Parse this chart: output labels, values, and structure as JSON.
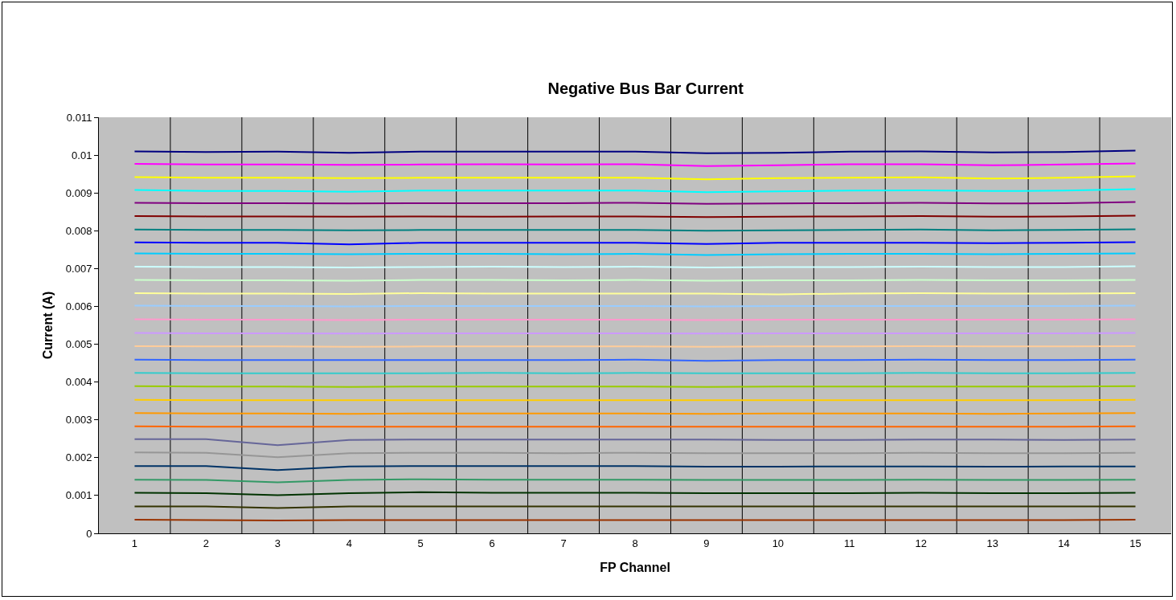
{
  "chart_data": {
    "type": "line",
    "title": "Negative Bus Bar Current",
    "xlabel": "FP Channel",
    "ylabel": "Current (A)",
    "categories": [
      "1",
      "2",
      "3",
      "4",
      "5",
      "6",
      "7",
      "8",
      "9",
      "10",
      "11",
      "12",
      "13",
      "14",
      "15"
    ],
    "ylim": [
      0,
      0.011
    ],
    "yticks": [
      0,
      0.001,
      0.002,
      0.003,
      0.004,
      0.005,
      0.006,
      0.007,
      0.008,
      0.009,
      0.01,
      0.011
    ],
    "grid": "x",
    "series": [
      {
        "color": "#000080",
        "values": [
          0.0101,
          0.01008,
          0.01009,
          0.01006,
          0.01009,
          0.01009,
          0.01009,
          0.01009,
          0.01005,
          0.01006,
          0.01009,
          0.0101,
          0.01007,
          0.01008,
          0.01012
        ]
      },
      {
        "color": "#ff00ff",
        "values": [
          0.00977,
          0.00975,
          0.00975,
          0.00974,
          0.00975,
          0.00976,
          0.00975,
          0.00976,
          0.00971,
          0.00973,
          0.00976,
          0.00976,
          0.00973,
          0.00975,
          0.00978
        ]
      },
      {
        "color": "#ffff00",
        "values": [
          0.00942,
          0.0094,
          0.0094,
          0.00939,
          0.0094,
          0.0094,
          0.0094,
          0.0094,
          0.00936,
          0.00939,
          0.0094,
          0.00941,
          0.00938,
          0.0094,
          0.00944
        ]
      },
      {
        "color": "#00ffff",
        "values": [
          0.00908,
          0.00905,
          0.00905,
          0.00903,
          0.00906,
          0.00906,
          0.00906,
          0.00906,
          0.00902,
          0.00904,
          0.00906,
          0.00907,
          0.00905,
          0.00906,
          0.0091
        ]
      },
      {
        "color": "#800080",
        "values": [
          0.00874,
          0.00873,
          0.00873,
          0.00872,
          0.00873,
          0.00873,
          0.00873,
          0.00874,
          0.00871,
          0.00872,
          0.00873,
          0.00874,
          0.00872,
          0.00873,
          0.00876
        ]
      },
      {
        "color": "#800000",
        "values": [
          0.00839,
          0.00838,
          0.00838,
          0.00837,
          0.00838,
          0.00837,
          0.00838,
          0.00838,
          0.00836,
          0.00837,
          0.00838,
          0.00839,
          0.00837,
          0.00838,
          0.0084
        ]
      },
      {
        "color": "#008080",
        "values": [
          0.00803,
          0.00802,
          0.00802,
          0.00801,
          0.00802,
          0.00802,
          0.00802,
          0.00802,
          0.008,
          0.00801,
          0.00802,
          0.00803,
          0.00801,
          0.00802,
          0.00804
        ]
      },
      {
        "color": "#0000ff",
        "values": [
          0.00769,
          0.00768,
          0.00768,
          0.00764,
          0.00768,
          0.00768,
          0.00768,
          0.00768,
          0.00765,
          0.00768,
          0.00768,
          0.00768,
          0.00767,
          0.00768,
          0.0077
        ]
      },
      {
        "color": "#00ccff",
        "values": [
          0.0074,
          0.00739,
          0.00739,
          0.00738,
          0.00739,
          0.00739,
          0.00738,
          0.00739,
          0.00736,
          0.00738,
          0.00739,
          0.00739,
          0.00738,
          0.00739,
          0.0074
        ]
      },
      {
        "color": "#ccffff",
        "values": [
          0.00705,
          0.00704,
          0.00704,
          0.00703,
          0.00704,
          0.00705,
          0.00704,
          0.00705,
          0.00703,
          0.00704,
          0.00704,
          0.00705,
          0.00704,
          0.00704,
          0.00706
        ]
      },
      {
        "color": "#ccffcc",
        "values": [
          0.0067,
          0.00669,
          0.00669,
          0.00668,
          0.0067,
          0.0067,
          0.00669,
          0.0067,
          0.00668,
          0.00669,
          0.00669,
          0.0067,
          0.00669,
          0.00669,
          0.0067
        ]
      },
      {
        "color": "#ffff99",
        "values": [
          0.00635,
          0.00634,
          0.00634,
          0.00633,
          0.00635,
          0.00634,
          0.00634,
          0.00634,
          0.00634,
          0.00632,
          0.00634,
          0.00635,
          0.00634,
          0.00634,
          0.00635
        ]
      },
      {
        "color": "#99ccff",
        "values": [
          0.00602,
          0.00601,
          0.00601,
          0.006,
          0.00601,
          0.00601,
          0.00601,
          0.00601,
          0.006,
          0.00601,
          0.00601,
          0.00601,
          0.00601,
          0.00601,
          0.00602
        ]
      },
      {
        "color": "#ff99cc",
        "values": [
          0.00566,
          0.00565,
          0.00565,
          0.00564,
          0.00565,
          0.00565,
          0.00565,
          0.00565,
          0.00564,
          0.00565,
          0.00565,
          0.00565,
          0.00565,
          0.00565,
          0.00566
        ]
      },
      {
        "color": "#cc99ff",
        "values": [
          0.0053,
          0.00529,
          0.00529,
          0.00528,
          0.00529,
          0.00529,
          0.00529,
          0.00529,
          0.00528,
          0.00529,
          0.00529,
          0.00529,
          0.00529,
          0.00529,
          0.0053
        ]
      },
      {
        "color": "#ffcc99",
        "values": [
          0.00495,
          0.00494,
          0.00494,
          0.00493,
          0.00494,
          0.00494,
          0.00494,
          0.00494,
          0.00493,
          0.00494,
          0.00494,
          0.00495,
          0.00494,
          0.00494,
          0.00495
        ]
      },
      {
        "color": "#3366ff",
        "values": [
          0.00459,
          0.00458,
          0.00458,
          0.00458,
          0.00458,
          0.00458,
          0.00458,
          0.00459,
          0.00456,
          0.00458,
          0.00458,
          0.00459,
          0.00458,
          0.00458,
          0.00459
        ]
      },
      {
        "color": "#33cccc",
        "values": [
          0.00424,
          0.00423,
          0.00423,
          0.00423,
          0.00423,
          0.00424,
          0.00423,
          0.00424,
          0.00423,
          0.00423,
          0.00423,
          0.00424,
          0.00423,
          0.00423,
          0.00424
        ]
      },
      {
        "color": "#99cc00",
        "values": [
          0.00389,
          0.00388,
          0.00388,
          0.00387,
          0.00388,
          0.00388,
          0.00388,
          0.00388,
          0.00387,
          0.00388,
          0.00388,
          0.00388,
          0.00388,
          0.00388,
          0.00389
        ]
      },
      {
        "color": "#ffcc00",
        "values": [
          0.00353,
          0.00352,
          0.00352,
          0.00352,
          0.00352,
          0.00352,
          0.00352,
          0.00352,
          0.00352,
          0.00352,
          0.00352,
          0.00352,
          0.00352,
          0.00352,
          0.00353
        ]
      },
      {
        "color": "#ff9900",
        "values": [
          0.00318,
          0.00317,
          0.00317,
          0.00316,
          0.00317,
          0.00317,
          0.00317,
          0.00317,
          0.00316,
          0.00317,
          0.00317,
          0.00317,
          0.00316,
          0.00317,
          0.00318
        ]
      },
      {
        "color": "#ff6600",
        "values": [
          0.00283,
          0.00282,
          0.00282,
          0.00282,
          0.00282,
          0.00282,
          0.00282,
          0.00282,
          0.00282,
          0.00282,
          0.00282,
          0.00282,
          0.00282,
          0.00282,
          0.00283
        ]
      },
      {
        "color": "#666699",
        "values": [
          0.00249,
          0.00249,
          0.00233,
          0.00247,
          0.00248,
          0.00248,
          0.00248,
          0.00248,
          0.00248,
          0.00247,
          0.00247,
          0.00248,
          0.00248,
          0.00247,
          0.00248
        ]
      },
      {
        "color": "#969696",
        "values": [
          0.00214,
          0.00213,
          0.00201,
          0.00212,
          0.00213,
          0.00213,
          0.00212,
          0.00213,
          0.00212,
          0.00212,
          0.00212,
          0.00213,
          0.00212,
          0.00212,
          0.00213
        ]
      },
      {
        "color": "#003366",
        "values": [
          0.00178,
          0.00178,
          0.00167,
          0.00177,
          0.00178,
          0.00178,
          0.00178,
          0.00178,
          0.00176,
          0.00176,
          0.00177,
          0.00177,
          0.00176,
          0.00177,
          0.00177
        ]
      },
      {
        "color": "#339966",
        "values": [
          0.00142,
          0.00141,
          0.00135,
          0.00141,
          0.00143,
          0.00142,
          0.00142,
          0.00142,
          0.00141,
          0.00141,
          0.00141,
          0.00142,
          0.00141,
          0.00141,
          0.00142
        ]
      },
      {
        "color": "#003300",
        "values": [
          0.00107,
          0.00106,
          0.00101,
          0.00106,
          0.00109,
          0.00107,
          0.00107,
          0.00107,
          0.00106,
          0.00106,
          0.00106,
          0.00107,
          0.00106,
          0.00106,
          0.00107
        ]
      },
      {
        "color": "#333300",
        "values": [
          0.00071,
          0.00071,
          0.00067,
          0.00071,
          0.00071,
          0.00071,
          0.00071,
          0.00071,
          0.00071,
          0.00071,
          0.00071,
          0.00071,
          0.00071,
          0.00071,
          0.00071
        ]
      },
      {
        "color": "#993300",
        "values": [
          0.00036,
          0.00035,
          0.00034,
          0.00035,
          0.00035,
          0.00035,
          0.00035,
          0.00035,
          0.00035,
          0.00035,
          0.00035,
          0.00035,
          0.00035,
          0.00035,
          0.00036
        ]
      }
    ]
  }
}
